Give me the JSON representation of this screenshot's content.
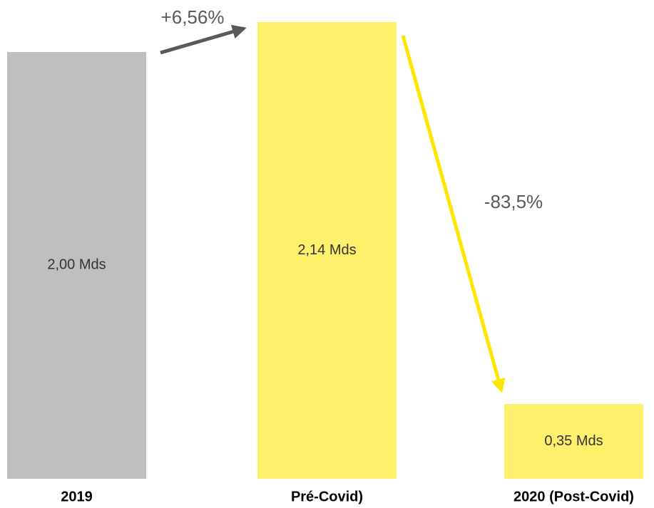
{
  "chart_data": {
    "type": "bar",
    "categories": [
      "2019",
      "Pré-Covid)",
      "2020 (Post-Covid)"
    ],
    "values": [
      2.0,
      2.14,
      0.35
    ],
    "value_labels": [
      "2,00 Mds",
      "2,14 Mds",
      "0,35 Mds"
    ],
    "colors": [
      "#bfbfbf",
      "#fff06b",
      "#fff06b"
    ],
    "annotations": [
      "+6,56%",
      "-83,5%"
    ]
  }
}
